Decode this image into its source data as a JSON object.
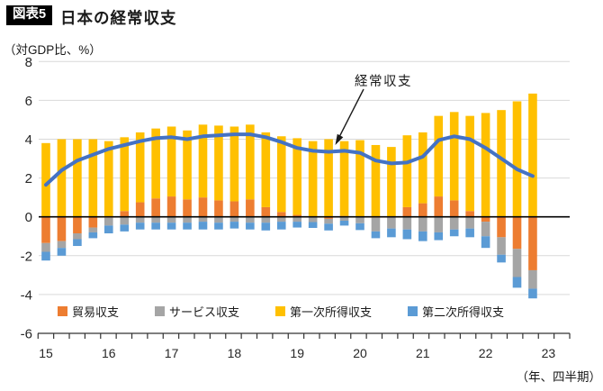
{
  "header": {
    "badge": "図表5",
    "title": "日本の経常収支"
  },
  "chart_data": {
    "type": "bar",
    "subtype": "stacked-bar-with-line",
    "title": "日本の経常収支",
    "y_axis_unit": "（対GDP比、%）",
    "x_axis_unit": "（年、四半期）",
    "annotation": "経常収支",
    "ylim": [
      -6,
      8
    ],
    "grid": true,
    "y_ticks": [
      8,
      6,
      4,
      2,
      0,
      -2,
      -4,
      -6
    ],
    "x_year_labels": [
      "15",
      "16",
      "17",
      "18",
      "19",
      "20",
      "21",
      "22",
      "23"
    ],
    "categories": [
      "15Q1",
      "15Q2",
      "15Q3",
      "15Q4",
      "16Q1",
      "16Q2",
      "16Q3",
      "16Q4",
      "17Q1",
      "17Q2",
      "17Q3",
      "17Q4",
      "18Q1",
      "18Q2",
      "18Q3",
      "18Q4",
      "19Q1",
      "19Q2",
      "19Q3",
      "19Q4",
      "20Q1",
      "20Q2",
      "20Q3",
      "20Q4",
      "21Q1",
      "21Q2",
      "21Q3",
      "21Q4",
      "22Q1",
      "22Q2",
      "22Q3",
      "22Q4"
    ],
    "series": [
      {
        "key": "trade",
        "name": "貿易収支",
        "color": "#ED7D31",
        "values": [
          -1.35,
          -1.25,
          -0.85,
          -0.55,
          -0.05,
          0.3,
          0.75,
          0.95,
          1.05,
          0.9,
          1.0,
          0.85,
          0.8,
          0.9,
          0.5,
          0.25,
          0.1,
          0.0,
          -0.1,
          0.05,
          0.0,
          -0.05,
          0.0,
          0.5,
          0.7,
          1.05,
          0.85,
          0.3,
          -0.25,
          -1.05,
          -1.65,
          -2.75
        ]
      },
      {
        "key": "services",
        "name": "サービス収支",
        "color": "#A5A5A5",
        "values": [
          -0.45,
          -0.35,
          -0.3,
          -0.25,
          -0.4,
          -0.4,
          -0.3,
          -0.3,
          -0.3,
          -0.3,
          -0.25,
          -0.3,
          -0.25,
          -0.3,
          -0.3,
          -0.25,
          -0.25,
          -0.27,
          -0.25,
          -0.2,
          -0.33,
          -0.7,
          -0.6,
          -0.65,
          -0.75,
          -0.8,
          -0.65,
          -0.6,
          -0.75,
          -0.9,
          -1.45,
          -0.95
        ]
      },
      {
        "key": "primary",
        "name": "第一次所得収支",
        "color": "#FFC000",
        "values": [
          3.8,
          4.0,
          4.0,
          4.0,
          3.9,
          3.8,
          3.6,
          3.6,
          3.6,
          3.55,
          3.75,
          3.85,
          3.85,
          3.85,
          3.85,
          3.9,
          3.95,
          3.9,
          4.0,
          3.85,
          3.95,
          3.7,
          3.6,
          3.7,
          3.65,
          4.15,
          4.55,
          4.9,
          5.35,
          5.5,
          5.95,
          6.35
        ]
      },
      {
        "key": "secondary",
        "name": "第二次所得収支",
        "color": "#5B9BD5",
        "values": [
          -0.45,
          -0.4,
          -0.35,
          -0.3,
          -0.4,
          -0.35,
          -0.35,
          -0.35,
          -0.35,
          -0.35,
          -0.4,
          -0.35,
          -0.35,
          -0.35,
          -0.4,
          -0.4,
          -0.3,
          -0.3,
          -0.35,
          -0.25,
          -0.35,
          -0.35,
          -0.45,
          -0.5,
          -0.5,
          -0.4,
          -0.35,
          -0.45,
          -0.6,
          -0.4,
          -0.55,
          -0.5
        ]
      }
    ],
    "line": {
      "key": "current-account",
      "name": "経常収支",
      "color": "#4472C4",
      "values": [
        1.65,
        2.4,
        2.9,
        3.2,
        3.5,
        3.7,
        3.9,
        4.05,
        4.1,
        4.0,
        4.15,
        4.2,
        4.25,
        4.25,
        4.1,
        3.85,
        3.55,
        3.4,
        3.35,
        3.4,
        3.3,
        2.9,
        2.75,
        2.8,
        3.1,
        3.95,
        4.15,
        4.0,
        3.55,
        3.0,
        2.45,
        2.1
      ]
    }
  }
}
